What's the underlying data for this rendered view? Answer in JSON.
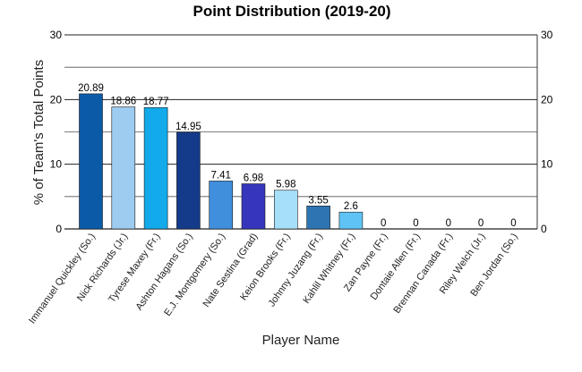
{
  "chart_data": {
    "type": "bar",
    "title": "Point Distribution (2019-20)",
    "xlabel": "Player Name",
    "ylabel": "% of Team's Total Points",
    "ylim": [
      0,
      30
    ],
    "y_ticks": [
      0,
      10,
      20,
      30
    ],
    "grid": true,
    "secondary_y_axis": true,
    "categories": [
      "Immanuel Quickley (So.)",
      "Nick Richards (Jr.)",
      "Tyrese Maxey (Fr.)",
      "Ashton Hagans (So.)",
      "E.J. Montgomery (So.)",
      "Nate Sestina (Grad)",
      "Keion Brooks (Fr.)",
      "Johnny Juzang (Fr.)",
      "Kahlil Whitney (Fr.)",
      "Zan Payne (Fr.)",
      "Dontaie Allen (Fr.)",
      "Brennan Canada (Fr.)",
      "Riley Welch (Jr.)",
      "Ben Jordan (So.)"
    ],
    "values": [
      20.89,
      18.86,
      18.77,
      14.95,
      7.41,
      6.98,
      5.98,
      3.55,
      2.6,
      0,
      0,
      0,
      0,
      0
    ],
    "value_labels": [
      "20.89",
      "18.86",
      "18.77",
      "14.95",
      "7.41",
      "6.98",
      "5.98",
      "3.55",
      "2.6",
      "0",
      "0",
      "0",
      "0",
      "0"
    ],
    "colors": [
      "#0a5aa8",
      "#9ecbf0",
      "#12aaea",
      "#143a8a",
      "#3f8fdd",
      "#3636bd",
      "#a6dff8",
      "#2d74b2",
      "#5fc4f5",
      "#5fc4f5",
      "#5fc4f5",
      "#5fc4f5",
      "#5fc4f5",
      "#5fc4f5"
    ]
  }
}
